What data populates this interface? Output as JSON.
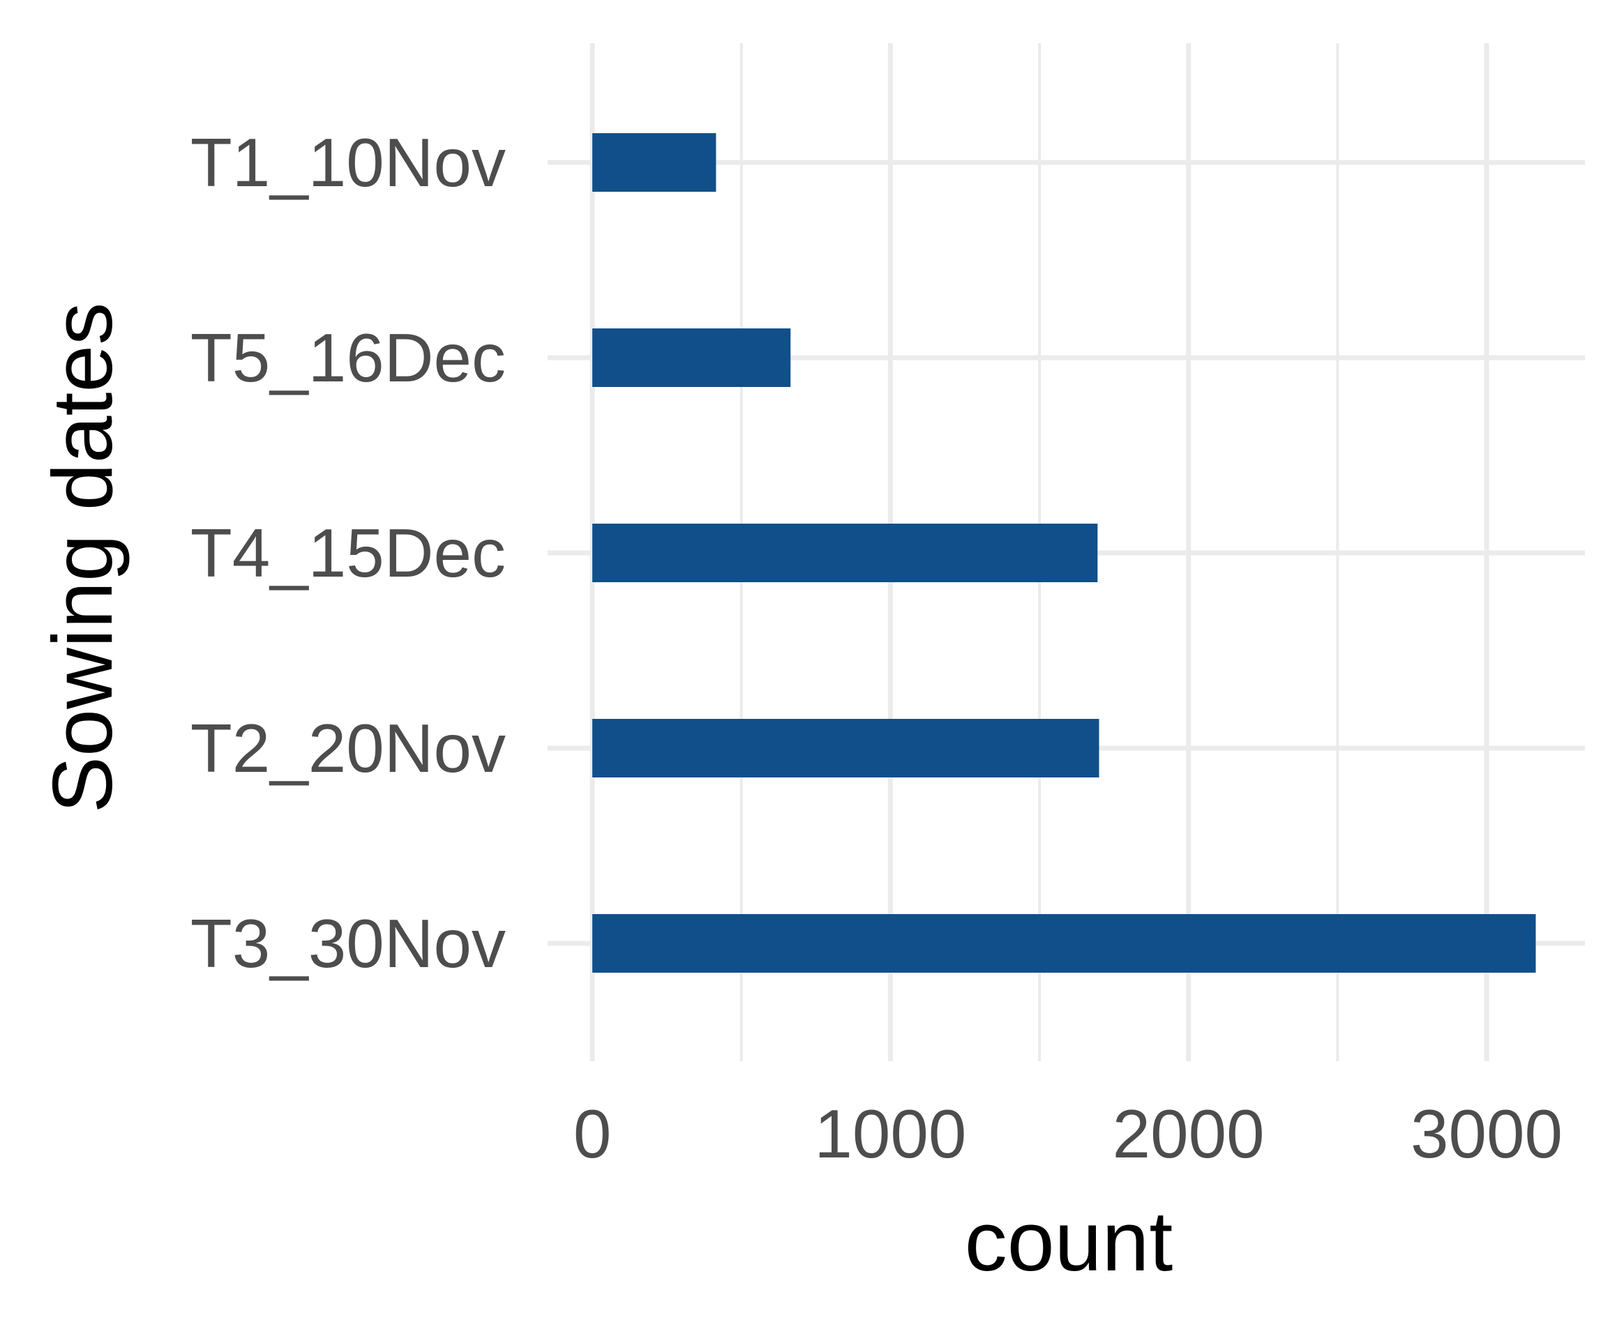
{
  "chart_data": {
    "type": "bar",
    "orientation": "horizontal",
    "categories": [
      "T1_10Nov",
      "T5_16Dec",
      "T4_15Dec",
      "T2_20Nov",
      "T3_30Nov"
    ],
    "values": [
      415,
      665,
      1695,
      1700,
      3165
    ],
    "xlabel": "count",
    "ylabel": "Sowing dates",
    "xlim": [
      -150,
      3330
    ],
    "xticks": [
      0,
      1000,
      2000,
      3000
    ],
    "xtick_labels": [
      "0",
      "1000",
      "2000",
      "3000"
    ],
    "x_minor_gridlines": [
      500,
      1500,
      2500
    ],
    "grid": true,
    "legend": "none",
    "colors": {
      "bar": "#114f8a",
      "grid": "#ebebeb",
      "tick_text": "#4d4d4d",
      "axis_title": "#000000"
    }
  }
}
